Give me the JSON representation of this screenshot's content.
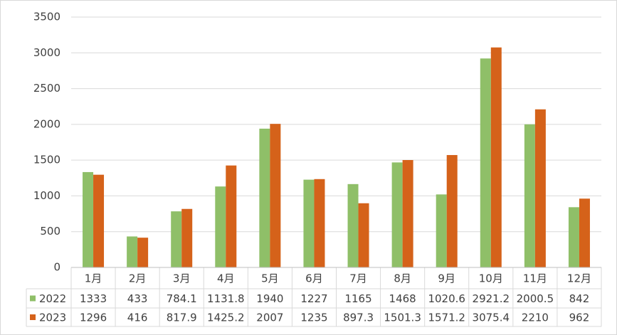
{
  "chart_data": {
    "type": "bar",
    "categories": [
      "1月",
      "2月",
      "3月",
      "4月",
      "5月",
      "6月",
      "7月",
      "8月",
      "9月",
      "10月",
      "11月",
      "12月"
    ],
    "series": [
      {
        "name": "2022",
        "color": "#8fbf68",
        "values": [
          1333,
          433,
          784.1,
          1131.8,
          1940,
          1227,
          1165,
          1468,
          1020.6,
          2921.2,
          2000.5,
          842
        ]
      },
      {
        "name": "2023",
        "color": "#d5621a",
        "values": [
          1296,
          416,
          817.9,
          1425.2,
          2007,
          1235,
          897.3,
          1501.3,
          1571.2,
          3075.4,
          2210,
          962
        ]
      }
    ],
    "ylim": [
      0,
      3500
    ],
    "yticks": [
      0,
      500,
      1000,
      1500,
      2000,
      2500,
      3000,
      3500
    ],
    "grid": true
  }
}
